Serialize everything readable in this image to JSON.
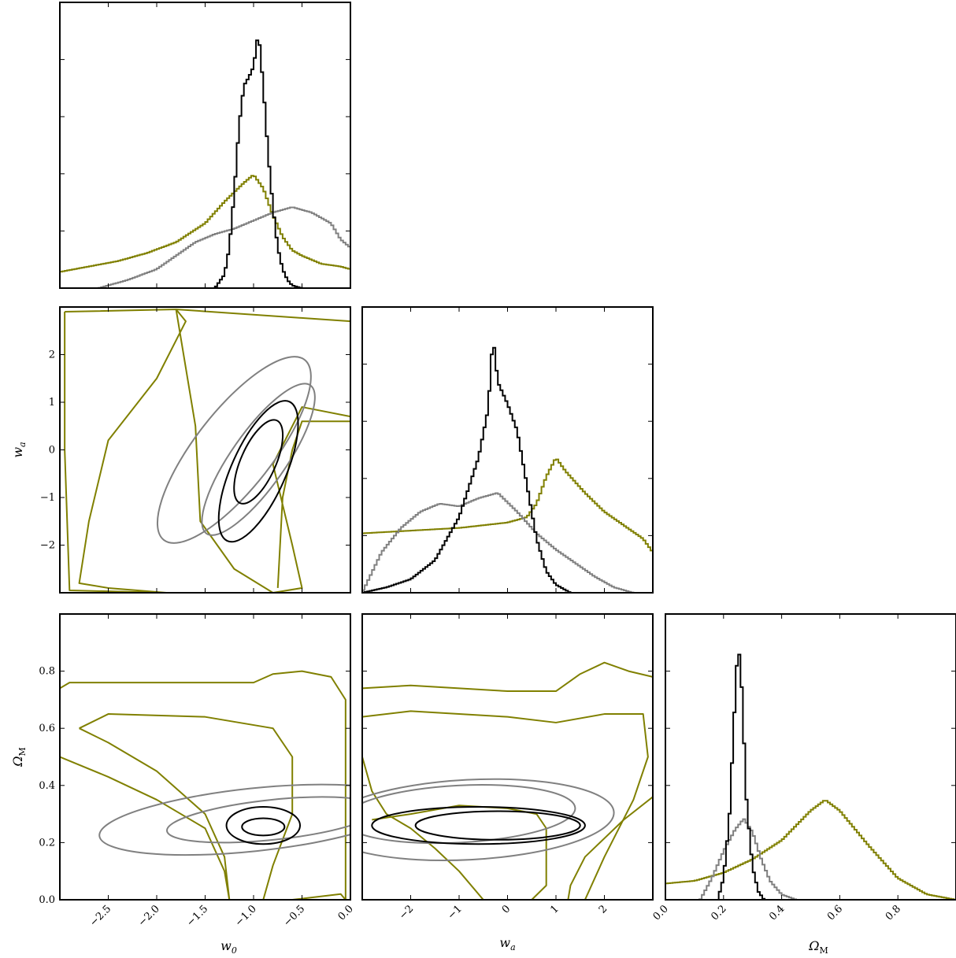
{
  "chart_data": {
    "type": "corner",
    "parameters": [
      {
        "key": "w0",
        "label": "w",
        "sub": "0",
        "lim": [
          -3.0,
          0.0
        ],
        "ticks": [
          -2.5,
          -2.0,
          -1.5,
          -1.0,
          -0.5,
          0.0
        ],
        "tick_labels": [
          "−2.5",
          "−2.0",
          "−1.5",
          "−1.0",
          "−0.5",
          "0.0"
        ]
      },
      {
        "key": "wa",
        "label": "w",
        "sub": "a",
        "lim": [
          -3.0,
          3.0
        ],
        "ticks": [
          -2,
          -1,
          0,
          1,
          2
        ],
        "tick_labels": [
          "−2",
          "−1",
          "0",
          "1",
          "2"
        ]
      },
      {
        "key": "om",
        "label": "Ω",
        "sub": "M",
        "lim": [
          0.0,
          1.0
        ],
        "ticks": [
          0.0,
          0.2,
          0.4,
          0.6,
          0.8
        ],
        "tick_labels": [
          "0.0",
          "0.2",
          "0.4",
          "0.6",
          "0.8"
        ]
      }
    ],
    "series": [
      {
        "color": "#000000"
      },
      {
        "color": "#808080"
      },
      {
        "color": "#808000"
      }
    ],
    "histograms": {
      "w0": {
        "black": [
          [
            -1.4,
            0.0
          ],
          [
            -1.3,
            0.05
          ],
          [
            -1.25,
            0.15
          ],
          [
            -1.2,
            0.35
          ],
          [
            -1.15,
            0.6
          ],
          [
            -1.1,
            0.75
          ],
          [
            -1.05,
            0.78
          ],
          [
            -1.0,
            0.82
          ],
          [
            -0.95,
            0.95
          ],
          [
            -0.9,
            0.75
          ],
          [
            -0.85,
            0.5
          ],
          [
            -0.8,
            0.3
          ],
          [
            -0.75,
            0.15
          ],
          [
            -0.7,
            0.07
          ],
          [
            -0.65,
            0.03
          ],
          [
            -0.6,
            0.01
          ],
          [
            -0.5,
            0.0
          ]
        ],
        "gray": [
          [
            -2.6,
            0.0
          ],
          [
            -2.3,
            0.03
          ],
          [
            -2.0,
            0.07
          ],
          [
            -1.8,
            0.12
          ],
          [
            -1.6,
            0.17
          ],
          [
            -1.4,
            0.2
          ],
          [
            -1.2,
            0.22
          ],
          [
            -1.0,
            0.25
          ],
          [
            -0.8,
            0.28
          ],
          [
            -0.6,
            0.3
          ],
          [
            -0.4,
            0.28
          ],
          [
            -0.2,
            0.24
          ],
          [
            -0.1,
            0.18
          ],
          [
            0.0,
            0.15
          ]
        ],
        "olive": [
          [
            -3.0,
            0.06
          ],
          [
            -2.7,
            0.08
          ],
          [
            -2.4,
            0.1
          ],
          [
            -2.1,
            0.13
          ],
          [
            -1.8,
            0.17
          ],
          [
            -1.5,
            0.24
          ],
          [
            -1.3,
            0.32
          ],
          [
            -1.1,
            0.39
          ],
          [
            -1.0,
            0.42
          ],
          [
            -0.9,
            0.37
          ],
          [
            -0.8,
            0.27
          ],
          [
            -0.7,
            0.19
          ],
          [
            -0.6,
            0.14
          ],
          [
            -0.5,
            0.12
          ],
          [
            -0.3,
            0.09
          ],
          [
            -0.1,
            0.08
          ],
          [
            0.0,
            0.07
          ]
        ]
      },
      "wa": {
        "black": [
          [
            -3.0,
            0.0
          ],
          [
            -2.5,
            0.02
          ],
          [
            -2.0,
            0.05
          ],
          [
            -1.5,
            0.12
          ],
          [
            -1.0,
            0.28
          ],
          [
            -0.6,
            0.5
          ],
          [
            -0.4,
            0.68
          ],
          [
            -0.3,
            0.95
          ],
          [
            -0.2,
            0.78
          ],
          [
            0.0,
            0.7
          ],
          [
            0.2,
            0.6
          ],
          [
            0.4,
            0.4
          ],
          [
            0.6,
            0.2
          ],
          [
            0.8,
            0.08
          ],
          [
            1.0,
            0.03
          ],
          [
            1.3,
            0.0
          ]
        ],
        "gray": [
          [
            -3.0,
            0.0
          ],
          [
            -2.6,
            0.15
          ],
          [
            -2.2,
            0.24
          ],
          [
            -1.8,
            0.3
          ],
          [
            -1.4,
            0.33
          ],
          [
            -1.0,
            0.32
          ],
          [
            -0.6,
            0.35
          ],
          [
            -0.2,
            0.37
          ],
          [
            0.2,
            0.3
          ],
          [
            0.6,
            0.22
          ],
          [
            1.0,
            0.16
          ],
          [
            1.4,
            0.11
          ],
          [
            1.8,
            0.06
          ],
          [
            2.2,
            0.02
          ],
          [
            2.6,
            0.0
          ]
        ],
        "olive": [
          [
            -3.0,
            0.22
          ],
          [
            -2.0,
            0.23
          ],
          [
            -1.0,
            0.24
          ],
          [
            0.0,
            0.26
          ],
          [
            0.4,
            0.28
          ],
          [
            0.6,
            0.33
          ],
          [
            0.8,
            0.43
          ],
          [
            1.0,
            0.5
          ],
          [
            1.2,
            0.45
          ],
          [
            1.6,
            0.37
          ],
          [
            2.0,
            0.3
          ],
          [
            2.4,
            0.25
          ],
          [
            2.8,
            0.2
          ],
          [
            3.0,
            0.15
          ]
        ]
      },
      "om": {
        "black": [
          [
            0.18,
            0.0
          ],
          [
            0.2,
            0.08
          ],
          [
            0.22,
            0.3
          ],
          [
            0.24,
            0.75
          ],
          [
            0.25,
            0.95
          ],
          [
            0.26,
            0.85
          ],
          [
            0.27,
            0.6
          ],
          [
            0.28,
            0.35
          ],
          [
            0.3,
            0.12
          ],
          [
            0.32,
            0.03
          ],
          [
            0.34,
            0.0
          ]
        ],
        "gray": [
          [
            0.12,
            0.0
          ],
          [
            0.16,
            0.08
          ],
          [
            0.2,
            0.18
          ],
          [
            0.24,
            0.26
          ],
          [
            0.27,
            0.3
          ],
          [
            0.3,
            0.25
          ],
          [
            0.33,
            0.15
          ],
          [
            0.36,
            0.07
          ],
          [
            0.4,
            0.02
          ],
          [
            0.45,
            0.0
          ]
        ],
        "olive": [
          [
            0.0,
            0.06
          ],
          [
            0.1,
            0.07
          ],
          [
            0.2,
            0.1
          ],
          [
            0.3,
            0.15
          ],
          [
            0.4,
            0.22
          ],
          [
            0.5,
            0.33
          ],
          [
            0.55,
            0.37
          ],
          [
            0.6,
            0.33
          ],
          [
            0.7,
            0.2
          ],
          [
            0.8,
            0.08
          ],
          [
            0.9,
            0.02
          ],
          [
            1.0,
            0.0
          ]
        ]
      }
    },
    "contours": {
      "wa_vs_w0": {
        "black": [
          {
            "cx": -0.95,
            "cy": -0.25,
            "rx": 0.18,
            "ry": 0.95,
            "angle": 24
          },
          {
            "cx": -0.95,
            "cy": -0.45,
            "rx": 0.28,
            "ry": 1.6,
            "angle": 24
          }
        ],
        "gray": [
          {
            "cx": -0.95,
            "cy": -0.2,
            "rx": 0.28,
            "ry": 1.9,
            "angle": 35
          },
          {
            "cx": -1.2,
            "cy": 0.0,
            "rx": 0.4,
            "ry": 2.4,
            "angle": 38
          }
        ],
        "olive_paths": [
          [
            [
              -2.95,
              2.9
            ],
            [
              -1.8,
              2.95
            ],
            [
              -1.7,
              2.7
            ],
            [
              -2.0,
              1.5
            ],
            [
              -2.5,
              0.2
            ],
            [
              -2.7,
              -1.5
            ],
            [
              -2.8,
              -2.8
            ],
            [
              -2.5,
              -2.9
            ],
            [
              -1.9,
              -3.0
            ],
            [
              -2.9,
              -2.95
            ],
            [
              -2.95,
              0.0
            ],
            [
              -2.95,
              2.9
            ]
          ],
          [
            [
              -1.8,
              2.95
            ],
            [
              0.0,
              2.7
            ],
            [
              0.0,
              0.7
            ],
            [
              -0.5,
              0.9
            ],
            [
              -0.8,
              -0.3
            ],
            [
              -0.6,
              -2.0
            ],
            [
              -0.5,
              -2.9
            ],
            [
              -0.8,
              -3.0
            ],
            [
              -1.2,
              -2.5
            ],
            [
              -1.55,
              -1.5
            ],
            [
              -1.6,
              0.5
            ],
            [
              -1.8,
              2.95
            ]
          ],
          [
            [
              0.0,
              0.6
            ],
            [
              -0.5,
              0.6
            ],
            [
              -0.6,
              0.0
            ],
            [
              -0.7,
              -1.0
            ],
            [
              -0.75,
              -2.9
            ]
          ]
        ]
      },
      "om_vs_w0": {
        "black": [
          {
            "cx": -0.9,
            "cy": 0.255,
            "rx": 0.22,
            "ry": 0.03,
            "angle": 0
          },
          {
            "cx": -0.9,
            "cy": 0.26,
            "rx": 0.38,
            "ry": 0.065,
            "angle": 0
          }
        ],
        "gray": [
          {
            "cx": -0.8,
            "cy": 0.28,
            "rx": 1.1,
            "ry": 0.07,
            "angle": -6
          },
          {
            "cx": -1.0,
            "cy": 0.28,
            "rx": 1.6,
            "ry": 0.11,
            "angle": -6
          }
        ],
        "olive_paths": [
          [
            [
              -3.0,
              0.74
            ],
            [
              -2.9,
              0.76
            ],
            [
              -2.0,
              0.76
            ],
            [
              -1.0,
              0.76
            ],
            [
              -0.8,
              0.79
            ],
            [
              -0.5,
              0.8
            ],
            [
              -0.2,
              0.78
            ],
            [
              -0.05,
              0.7
            ],
            [
              -0.05,
              0.0
            ]
          ],
          [
            [
              -2.8,
              0.6
            ],
            [
              -2.5,
              0.65
            ],
            [
              -1.5,
              0.64
            ],
            [
              -0.8,
              0.6
            ],
            [
              -0.6,
              0.5
            ],
            [
              -0.6,
              0.3
            ],
            [
              -0.8,
              0.12
            ],
            [
              -0.9,
              0.0
            ]
          ],
          [
            [
              -2.8,
              0.6
            ],
            [
              -2.5,
              0.55
            ],
            [
              -2.0,
              0.45
            ],
            [
              -1.5,
              0.3
            ],
            [
              -1.3,
              0.15
            ],
            [
              -1.25,
              0.0
            ]
          ],
          [
            [
              -3.0,
              0.5
            ],
            [
              -2.5,
              0.43
            ],
            [
              -2.0,
              0.35
            ],
            [
              -1.5,
              0.25
            ],
            [
              -1.3,
              0.1
            ],
            [
              -1.25,
              0.0
            ]
          ],
          [
            [
              -0.6,
              0.0
            ],
            [
              -0.1,
              0.02
            ],
            [
              -0.05,
              0.0
            ]
          ]
        ]
      },
      "om_vs_wa": {
        "black": [
          {
            "cx": -0.2,
            "cy": 0.26,
            "rx": 1.7,
            "ry": 0.05,
            "angle": 0
          },
          {
            "cx": -0.6,
            "cy": 0.26,
            "rx": 2.2,
            "ry": 0.065,
            "angle": 0
          }
        ],
        "gray": [
          {
            "cx": -1.0,
            "cy": 0.3,
            "rx": 2.4,
            "ry": 0.1,
            "angle": -3
          },
          {
            "cx": -0.8,
            "cy": 0.28,
            "rx": 3.0,
            "ry": 0.14,
            "angle": -3
          }
        ],
        "olive_paths": [
          [
            [
              -3.0,
              0.74
            ],
            [
              -2.0,
              0.75
            ],
            [
              0.0,
              0.73
            ],
            [
              1.0,
              0.73
            ],
            [
              1.5,
              0.79
            ],
            [
              2.0,
              0.83
            ],
            [
              2.5,
              0.8
            ],
            [
              3.0,
              0.78
            ],
            [
              3.0,
              0.5
            ]
          ],
          [
            [
              -3.0,
              0.64
            ],
            [
              -2.0,
              0.66
            ],
            [
              0.0,
              0.64
            ],
            [
              1.0,
              0.62
            ],
            [
              2.0,
              0.65
            ],
            [
              2.8,
              0.65
            ],
            [
              2.9,
              0.5
            ],
            [
              2.6,
              0.35
            ],
            [
              2.0,
              0.15
            ],
            [
              1.6,
              0.0
            ]
          ],
          [
            [
              -3.0,
              0.5
            ],
            [
              -2.8,
              0.38
            ],
            [
              -2.5,
              0.3
            ],
            [
              -2.0,
              0.25
            ],
            [
              -1.5,
              0.18
            ],
            [
              -1.0,
              0.1
            ],
            [
              -0.5,
              0.0
            ]
          ],
          [
            [
              0.5,
              0.0
            ],
            [
              0.8,
              0.05
            ],
            [
              0.8,
              0.25
            ],
            [
              0.6,
              0.3
            ],
            [
              0.0,
              0.32
            ],
            [
              -1.0,
              0.33
            ],
            [
              -2.0,
              0.3
            ],
            [
              -2.8,
              0.28
            ]
          ],
          [
            [
              3.0,
              0.36
            ],
            [
              2.4,
              0.28
            ],
            [
              1.6,
              0.15
            ],
            [
              1.3,
              0.05
            ],
            [
              1.25,
              0.0
            ]
          ]
        ]
      }
    }
  }
}
